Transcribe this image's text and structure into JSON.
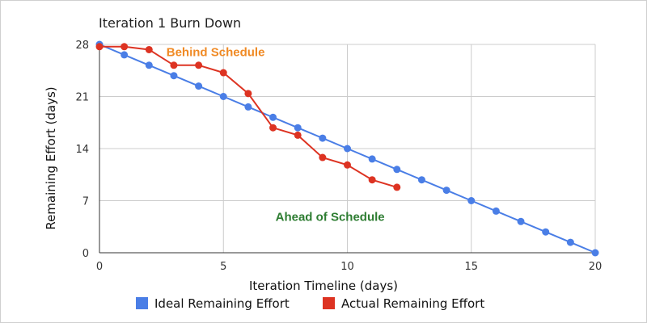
{
  "chart_data": {
    "type": "line",
    "title": "Iteration 1 Burn Down",
    "xlabel": "Iteration Timeline (days)",
    "ylabel": "Remaining Effort (days)",
    "xlim": [
      0,
      20
    ],
    "ylim": [
      0,
      28
    ],
    "x_ticks": [
      0,
      5,
      10,
      15,
      20
    ],
    "y_ticks": [
      0,
      7,
      14,
      21,
      28
    ],
    "grid": true,
    "legend_position": "bottom",
    "series": [
      {
        "name": "Ideal Remaining Effort",
        "color": "#4a7ee6",
        "x": [
          0,
          1,
          2,
          3,
          4,
          5,
          6,
          7,
          8,
          9,
          10,
          11,
          12,
          13,
          14,
          15,
          16,
          17,
          18,
          19,
          20
        ],
        "y": [
          28,
          26.6,
          25.2,
          23.8,
          22.4,
          21,
          19.6,
          18.2,
          16.8,
          15.4,
          14,
          12.6,
          11.2,
          9.8,
          8.4,
          7,
          5.6,
          4.2,
          2.8,
          1.4,
          0
        ]
      },
      {
        "name": "Actual Remaining Effort",
        "color": "#dd3322",
        "x": [
          0,
          1,
          2,
          3,
          4,
          5,
          6,
          7,
          8,
          9,
          10,
          11,
          12
        ],
        "y": [
          27.7,
          27.7,
          27.3,
          25.2,
          25.2,
          24.2,
          21.4,
          16.8,
          15.8,
          12.8,
          11.8,
          9.8,
          8.8
        ]
      }
    ],
    "annotations": [
      {
        "text": "Behind Schedule",
        "color": "#f08a24",
        "x": 2.7,
        "y": 26.4
      },
      {
        "text": "Ahead of Schedule",
        "color": "#2e7d32",
        "x": 7.1,
        "y": 4.3
      }
    ]
  }
}
